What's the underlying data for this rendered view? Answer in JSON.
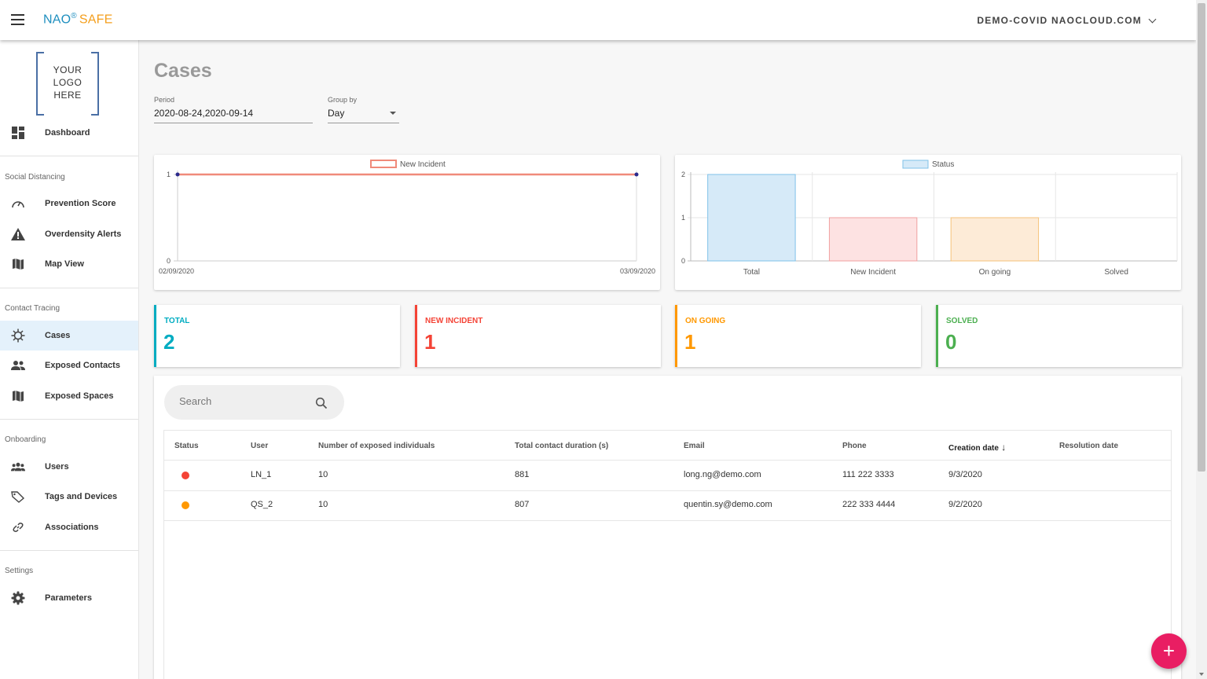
{
  "brand": {
    "nao": "NAO",
    "reg": "®",
    "safe": "SAFE"
  },
  "account": {
    "label": "DEMO-COVID NAOCLOUD.COM"
  },
  "logo": {
    "text": "YOUR\nLOGO\nHERE"
  },
  "sidebar": {
    "dashboard": "Dashboard",
    "sections": {
      "social": "Social Distancing",
      "contact": "Contact Tracing",
      "onboarding": "Onboarding",
      "settings": "Settings"
    },
    "items": {
      "prevention": "Prevention Score",
      "overdensity": "Overdensity Alerts",
      "map": "Map View",
      "cases": "Cases",
      "exposed_contacts": "Exposed Contacts",
      "exposed_spaces": "Exposed Spaces",
      "users": "Users",
      "tags": "Tags and Devices",
      "associations": "Associations",
      "parameters": "Parameters"
    }
  },
  "page": {
    "title": "Cases"
  },
  "filters": {
    "period_label": "Period",
    "period_value": "2020-08-24,2020-09-14",
    "group_label": "Group by",
    "group_value": "Day"
  },
  "chart_data": [
    {
      "type": "line",
      "title": "",
      "series": [
        {
          "name": "New Incident",
          "values": [
            1,
            1
          ]
        }
      ],
      "x": [
        "02/09/2020",
        "03/09/2020"
      ],
      "y_ticks": [
        "0",
        "1"
      ],
      "ylim": [
        0,
        1
      ],
      "color": "#f08a7a",
      "point_color": "#2a2a8c",
      "legend": "top"
    },
    {
      "type": "bar",
      "title": "",
      "categories": [
        "Total",
        "New Incident",
        "On going",
        "Solved"
      ],
      "series": [
        {
          "name": "Status",
          "values": [
            2,
            1,
            1,
            0
          ]
        }
      ],
      "y_ticks": [
        "0",
        "1",
        "2"
      ],
      "ylim": [
        0,
        2
      ],
      "fills": [
        "#d6eaf8",
        "#fde2e2",
        "#fdebd7",
        "#e8f5e9"
      ],
      "strokes": [
        "#7fc1e8",
        "#f0a0a0",
        "#f5c27a",
        "#8fd09a"
      ],
      "legend_fill": "#d6eaf8",
      "legend_stroke": "#7fc1e8",
      "legend": "top"
    }
  ],
  "stats": [
    {
      "label": "TOTAL",
      "value": "2",
      "color": "#00acc1"
    },
    {
      "label": "NEW INCIDENT",
      "value": "1",
      "color": "#f44336"
    },
    {
      "label": "ON GOING",
      "value": "1",
      "color": "#ff9800"
    },
    {
      "label": "SOLVED",
      "value": "0",
      "color": "#4caf50"
    }
  ],
  "search": {
    "placeholder": "Search"
  },
  "table": {
    "headers": [
      "Status",
      "User",
      "Number of exposed individuals",
      "Total contact duration (s)",
      "Email",
      "Phone",
      "Creation date",
      "Resolution date"
    ],
    "sort_indicator": "↓",
    "rows": [
      {
        "status_color": "#f44336",
        "user": "LN_1",
        "exposed": "10",
        "duration": "881",
        "email": "long.ng@demo.com",
        "phone": "111 222 3333",
        "created": "9/3/2020",
        "resolved": ""
      },
      {
        "status_color": "#ff9800",
        "user": "QS_2",
        "exposed": "10",
        "duration": "807",
        "email": "quentin.sy@demo.com",
        "phone": "222 333 4444",
        "created": "9/2/2020",
        "resolved": ""
      }
    ]
  },
  "fab": {
    "label": "+"
  }
}
